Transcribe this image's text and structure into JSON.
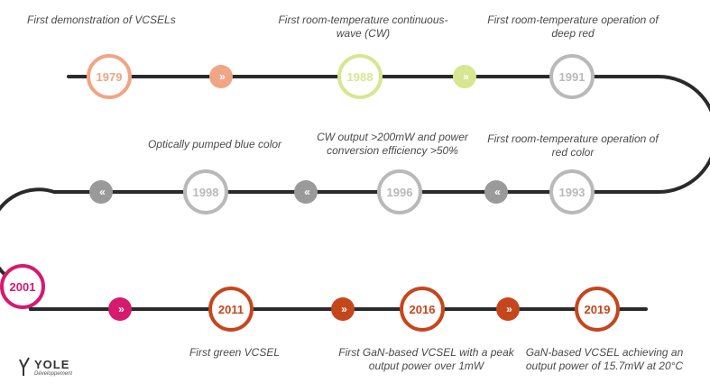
{
  "milestones": [
    {
      "year": "1979",
      "label": "First demonstration of VCSELs",
      "color": "#f0a585"
    },
    {
      "year": "1988",
      "label": "First room-temperature continuous-\nwave (CW)",
      "color": "#d7e690"
    },
    {
      "year": "1991",
      "label": "First room-temperature operation of\ndeep red",
      "color": "#b9b9b9"
    },
    {
      "year": "1993",
      "label": "First room-temperature operation of\nred color",
      "color": "#b9b9b9"
    },
    {
      "year": "1996",
      "label": "CW output >200mW and power\nconversion efficiency >50%",
      "color": "#b9b9b9"
    },
    {
      "year": "1998",
      "label": "Optically pumped blue color",
      "color": "#b9b9b9"
    },
    {
      "year": "2001",
      "label": "",
      "color": "#d61a6e"
    },
    {
      "year": "2011",
      "label": "First green VCSEL",
      "color": "#c6461c"
    },
    {
      "year": "2016",
      "label": "First GaN-based VCSEL with a peak\noutput power over 1mW",
      "color": "#c6461c"
    },
    {
      "year": "2019",
      "label": "GaN-based VCSEL achieving an\noutput power of 15.7mW at 20°C",
      "color": "#c6461c"
    }
  ],
  "arrows": [
    {
      "symbol": "»",
      "color": "#f0a585"
    },
    {
      "symbol": "»",
      "color": "#d7e690"
    },
    {
      "symbol": "«",
      "color": "#9a9a9a"
    },
    {
      "symbol": "«",
      "color": "#9a9a9a"
    },
    {
      "symbol": "«",
      "color": "#9a9a9a"
    },
    {
      "symbol": "»",
      "color": "#d61a6e"
    },
    {
      "symbol": "»",
      "color": "#c6461c"
    },
    {
      "symbol": "»",
      "color": "#c6461c"
    }
  ],
  "logo": {
    "brand": "YOLE",
    "sub": "Développement"
  },
  "colors": {
    "track": "#2a2a2a"
  }
}
